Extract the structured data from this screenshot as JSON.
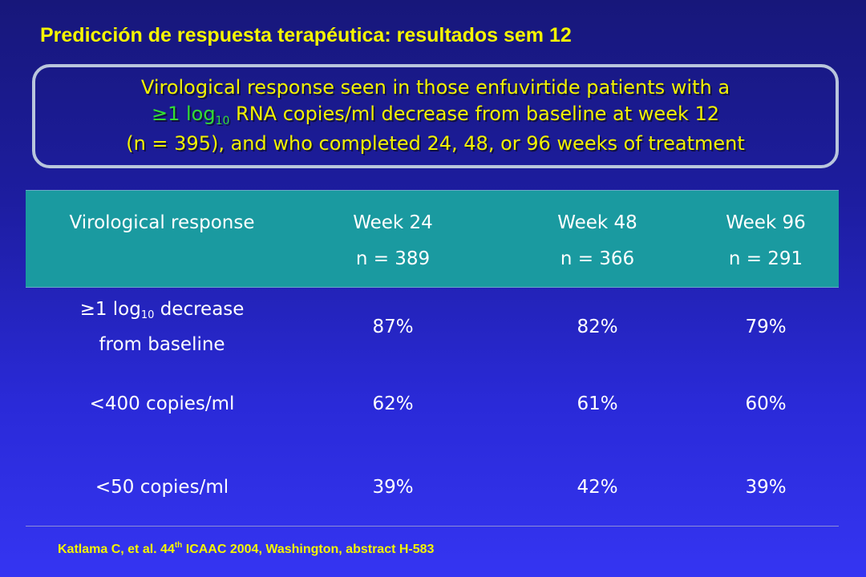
{
  "title": "Predicción de respuesta terapéutica: resultados sem 12",
  "callout": {
    "line1": "Virological response seen in those enfuvirtide patients with a",
    "line2_highlight_prefix": "≥1 log",
    "line2_highlight_sub": "10",
    "line2_rest": " RNA copies/ml decrease from baseline at week 12",
    "line3": "(n = 395), and who completed 24, 48, or 96 weeks of treatment"
  },
  "table": {
    "header": {
      "col1": "Virological response",
      "cols": [
        {
          "week": "Week 24",
          "n": "n = 389"
        },
        {
          "week": "Week 48",
          "n": "n = 366"
        },
        {
          "week": "Week 96",
          "n": "n = 291"
        }
      ]
    },
    "rows": [
      {
        "label_prefix": "≥1 log",
        "label_sub": "10",
        "label_suffix": " decrease",
        "label_line2": "from baseline",
        "values": [
          "87%",
          "82%",
          "79%"
        ]
      },
      {
        "label": "<400 copies/ml",
        "values": [
          "62%",
          "61%",
          "60%"
        ]
      },
      {
        "label": "<50 copies/ml",
        "values": [
          "39%",
          "42%",
          "39%"
        ]
      }
    ]
  },
  "citation": {
    "prefix": "Katlama C, et al. 44",
    "sup": "th",
    "suffix": " ICAAC 2004, Washington, abstract H-583"
  },
  "colors": {
    "title": "#f5f500",
    "highlight": "#33dd33",
    "header_bg": "#1a9aa0",
    "background": "#2323b8"
  }
}
